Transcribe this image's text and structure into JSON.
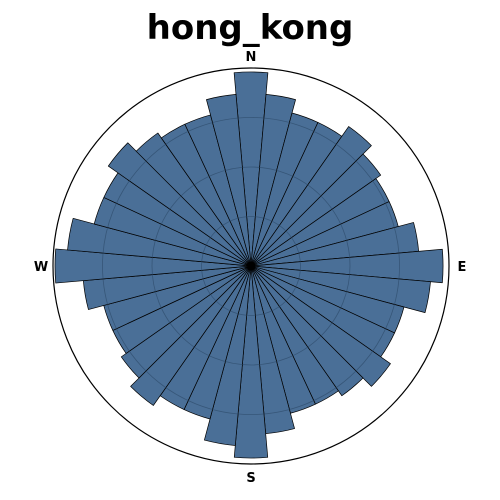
{
  "chart_data": {
    "type": "polar-bar",
    "title": "hong_kong",
    "direction_labels": {
      "north": "N",
      "east": "E",
      "south": "S",
      "west": "W"
    },
    "orientation": "north at top, angles increase clockwise",
    "sectors": 36,
    "sector_width_deg": 10,
    "angles_deg": [
      0,
      10,
      20,
      30,
      40,
      50,
      60,
      70,
      80,
      90,
      100,
      110,
      120,
      130,
      140,
      150,
      160,
      170,
      180,
      190,
      200,
      210,
      220,
      230,
      240,
      250,
      260,
      270,
      280,
      290,
      300,
      310,
      320,
      330,
      340,
      350
    ],
    "values": [
      0.98,
      0.87,
      0.8,
      0.8,
      0.86,
      0.8,
      0.77,
      0.77,
      0.85,
      0.97,
      0.91,
      0.8,
      0.8,
      0.86,
      0.8,
      0.77,
      0.77,
      0.85,
      0.97,
      0.91,
      0.8,
      0.8,
      0.86,
      0.8,
      0.77,
      0.77,
      0.85,
      0.99,
      0.93,
      0.82,
      0.82,
      0.88,
      0.82,
      0.79,
      0.79,
      0.87
    ],
    "rmax": 1.0,
    "grid_rings": [
      0.25,
      0.5,
      0.75
    ],
    "radial_tick_labels": false,
    "grid": true,
    "colors": {
      "bar_fill": "#4a6f97",
      "bar_edge": "#000000",
      "grid": "#27415f",
      "frame": "#000000"
    }
  }
}
